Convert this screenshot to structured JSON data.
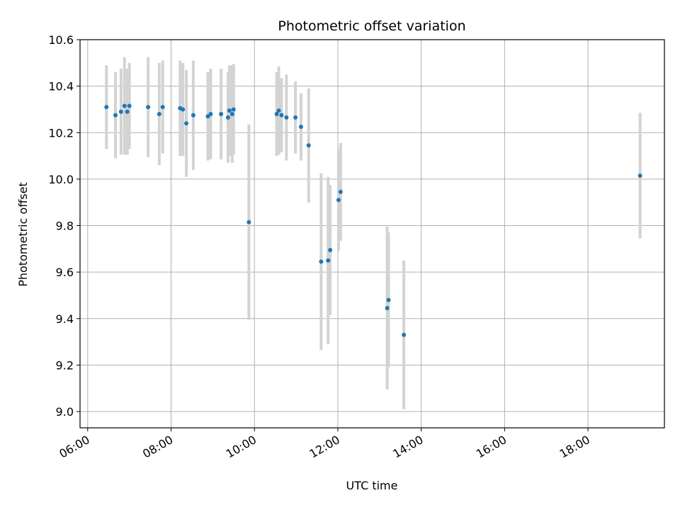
{
  "chart_data": {
    "type": "scatter",
    "title": "Photometric offset variation",
    "xlabel": "UTC time",
    "ylabel": "Photometric offset",
    "x_ticks": [
      "06:00",
      "08:00",
      "10:00",
      "12:00",
      "14:00",
      "16:00",
      "18:00"
    ],
    "y_ticks": [
      "9.0",
      "9.2",
      "9.4",
      "9.6",
      "9.8",
      "10.0",
      "10.2",
      "10.4",
      "10.6"
    ],
    "xlim": [
      "05:49",
      "19:50"
    ],
    "ylim": [
      8.93,
      10.6
    ],
    "grid": true,
    "error_bars": true,
    "point_color": "#1f77b4",
    "errorbar_color": "#d3d3d3",
    "points": [
      {
        "x": "06:27",
        "y": 10.31,
        "err": 0.18
      },
      {
        "x": "06:40",
        "y": 10.275,
        "err": 0.185
      },
      {
        "x": "06:48",
        "y": 10.29,
        "err": 0.185
      },
      {
        "x": "06:53",
        "y": 10.315,
        "err": 0.21
      },
      {
        "x": "06:57",
        "y": 10.29,
        "err": 0.185
      },
      {
        "x": "07:00",
        "y": 10.315,
        "err": 0.185
      },
      {
        "x": "07:27",
        "y": 10.31,
        "err": 0.215
      },
      {
        "x": "07:43",
        "y": 10.28,
        "err": 0.22
      },
      {
        "x": "07:48",
        "y": 10.31,
        "err": 0.2
      },
      {
        "x": "08:13",
        "y": 10.305,
        "err": 0.205
      },
      {
        "x": "08:17",
        "y": 10.3,
        "err": 0.2
      },
      {
        "x": "08:22",
        "y": 10.24,
        "err": 0.23
      },
      {
        "x": "08:32",
        "y": 10.275,
        "err": 0.235
      },
      {
        "x": "08:53",
        "y": 10.27,
        "err": 0.19
      },
      {
        "x": "08:57",
        "y": 10.28,
        "err": 0.195
      },
      {
        "x": "09:12",
        "y": 10.28,
        "err": 0.195
      },
      {
        "x": "09:22",
        "y": 10.265,
        "err": 0.195
      },
      {
        "x": "09:24",
        "y": 10.295,
        "err": 0.195
      },
      {
        "x": "09:28",
        "y": 10.28,
        "err": 0.21
      },
      {
        "x": "09:30",
        "y": 10.3,
        "err": 0.195
      },
      {
        "x": "09:52",
        "y": 9.815,
        "err": 0.42
      },
      {
        "x": "10:32",
        "y": 10.28,
        "err": 0.18
      },
      {
        "x": "10:35",
        "y": 10.295,
        "err": 0.19
      },
      {
        "x": "10:39",
        "y": 10.275,
        "err": 0.16
      },
      {
        "x": "10:46",
        "y": 10.265,
        "err": 0.185
      },
      {
        "x": "10:59",
        "y": 10.265,
        "err": 0.155
      },
      {
        "x": "11:07",
        "y": 10.225,
        "err": 0.145
      },
      {
        "x": "11:18",
        "y": 10.145,
        "err": 0.245
      },
      {
        "x": "11:36",
        "y": 9.645,
        "err": 0.38
      },
      {
        "x": "11:46",
        "y": 9.65,
        "err": 0.36
      },
      {
        "x": "11:49",
        "y": 9.695,
        "err": 0.28
      },
      {
        "x": "12:01",
        "y": 9.91,
        "err": 0.22
      },
      {
        "x": "12:04",
        "y": 9.945,
        "err": 0.21
      },
      {
        "x": "13:11",
        "y": 9.445,
        "err": 0.35
      },
      {
        "x": "13:13",
        "y": 9.48,
        "err": 0.29
      },
      {
        "x": "13:35",
        "y": 9.33,
        "err": 0.32
      },
      {
        "x": "19:15",
        "y": 10.015,
        "err": 0.27
      }
    ]
  }
}
